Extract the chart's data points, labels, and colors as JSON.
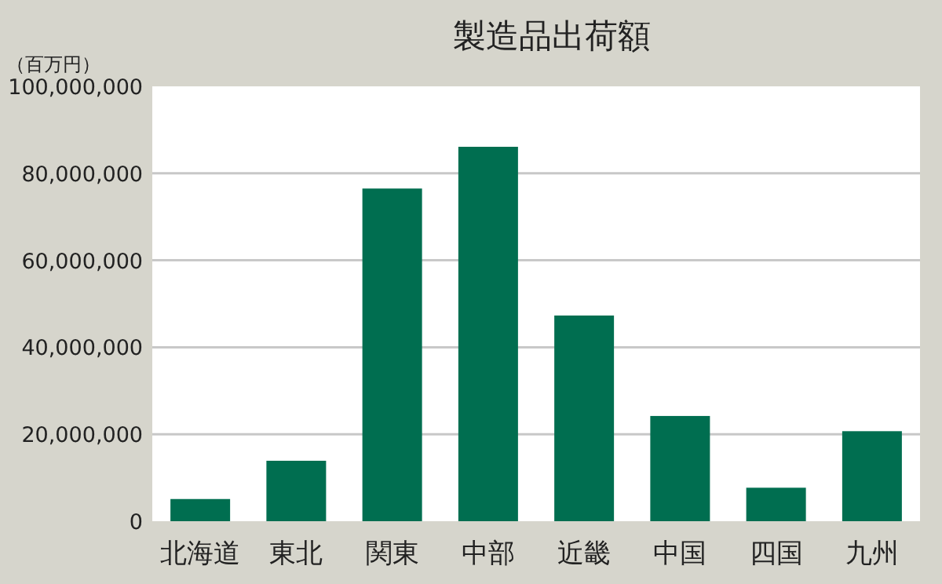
{
  "chart_data": {
    "type": "bar",
    "title": "製造品出荷額",
    "ylabel": "（百万円）",
    "categories": [
      "北海道",
      "東北",
      "関東",
      "中部",
      "近畿",
      "中国",
      "四国",
      "九州"
    ],
    "values": [
      5100000,
      13900000,
      76500000,
      86100000,
      47300000,
      24200000,
      7700000,
      20700000
    ],
    "color": "#006e50",
    "ylim": [
      0,
      100000000
    ],
    "yticks": [
      {
        "value": 0,
        "label": "0"
      },
      {
        "value": 20000000,
        "label": "20,000,000"
      },
      {
        "value": 40000000,
        "label": "40,000,000"
      },
      {
        "value": 60000000,
        "label": "60,000,000"
      },
      {
        "value": 80000000,
        "label": "80,000,000"
      },
      {
        "value": 100000000,
        "label": "100,000,000"
      }
    ],
    "grid": "y"
  }
}
